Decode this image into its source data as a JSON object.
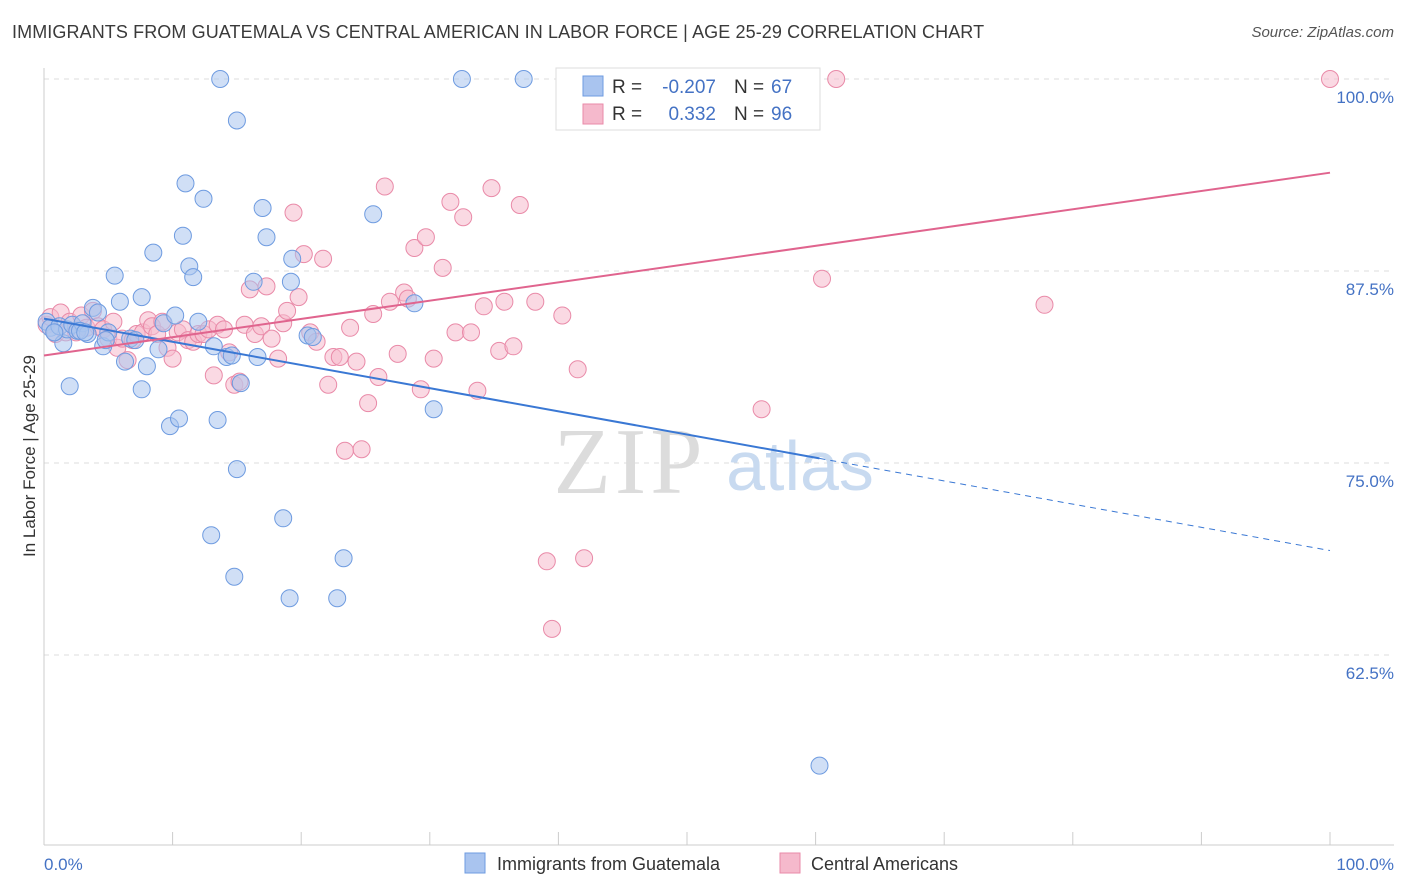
{
  "header": {
    "title": "IMMIGRANTS FROM GUATEMALA VS CENTRAL AMERICAN IN LABOR FORCE | AGE 25-29 CORRELATION CHART",
    "source": "Source: ZipAtlas.com"
  },
  "watermark": {
    "zip": "ZIP",
    "atlas": "atlas"
  },
  "colors": {
    "blue_fill": "#a9c4ef",
    "blue_stroke": "#6e9be0",
    "blue_line": "#3a78d4",
    "pink_fill": "#f5b9cc",
    "pink_stroke": "#e98aa8",
    "pink_line": "#e0648e",
    "grid": "#dddddd",
    "axis_text": "#4472c4"
  },
  "legend_box": {
    "rows": [
      {
        "r_label": "R =",
        "r_value": "-0.207",
        "n_label": "N =",
        "n_value": "67"
      },
      {
        "r_label": "R =",
        "r_value": "0.332",
        "n_label": "N =",
        "n_value": "96"
      }
    ]
  },
  "chart_data": {
    "type": "scatter",
    "title": "IMMIGRANTS FROM GUATEMALA VS CENTRAL AMERICAN IN LABOR FORCE | AGE 25-29 CORRELATION CHART",
    "xlabel": "",
    "ylabel": "In Labor Force | Age 25-29",
    "xlim": [
      0,
      100
    ],
    "ylim": [
      50,
      101.5
    ],
    "x_tick_labels": [
      "0.0%",
      "100.0%"
    ],
    "y_ticks": [
      {
        "value": 62.5,
        "label": "62.5%"
      },
      {
        "value": 75.0,
        "label": "75.0%"
      },
      {
        "value": 87.5,
        "label": "87.5%"
      },
      {
        "value": 100.0,
        "label": "100.0%"
      }
    ],
    "grid": "horizontal dashed",
    "legend_position": "bottom-center",
    "series": [
      {
        "name": "Immigrants from Guatemala",
        "color": "#a9c4ef",
        "points": [
          [
            0.2,
            84.2
          ],
          [
            0.5,
            83.8
          ],
          [
            0.8,
            83.5
          ],
          [
            1.2,
            83.9
          ],
          [
            1.5,
            82.8
          ],
          [
            1.8,
            83.7
          ],
          [
            2.2,
            84.0
          ],
          [
            2.6,
            83.6
          ],
          [
            3.0,
            84.1
          ],
          [
            3.4,
            83.4
          ],
          [
            3.8,
            85.1
          ],
          [
            4.2,
            84.8
          ],
          [
            4.6,
            82.6
          ],
          [
            5.0,
            83.5
          ],
          [
            5.5,
            87.2
          ],
          [
            5.9,
            85.5
          ],
          [
            6.3,
            81.6
          ],
          [
            6.7,
            83.1
          ],
          [
            7.1,
            83.0
          ],
          [
            7.6,
            85.8
          ],
          [
            8.0,
            81.3
          ],
          [
            8.5,
            88.7
          ],
          [
            8.9,
            82.4
          ],
          [
            9.3,
            84.1
          ],
          [
            9.8,
            77.4
          ],
          [
            10.2,
            84.6
          ],
          [
            10.5,
            77.9
          ],
          [
            10.8,
            89.8
          ],
          [
            11.0,
            93.2
          ],
          [
            11.3,
            87.8
          ],
          [
            11.6,
            87.1
          ],
          [
            12.0,
            84.2
          ],
          [
            12.4,
            92.2
          ],
          [
            13.0,
            70.3
          ],
          [
            13.2,
            82.6
          ],
          [
            13.5,
            77.8
          ],
          [
            13.7,
            100.0
          ],
          [
            14.2,
            81.9
          ],
          [
            14.6,
            82.0
          ],
          [
            14.8,
            67.6
          ],
          [
            15.0,
            97.3
          ],
          [
            15.0,
            74.6
          ],
          [
            15.3,
            80.2
          ],
          [
            16.3,
            86.8
          ],
          [
            16.6,
            81.9
          ],
          [
            17.0,
            91.6
          ],
          [
            17.3,
            89.7
          ],
          [
            18.6,
            71.4
          ],
          [
            19.1,
            66.2
          ],
          [
            19.3,
            88.3
          ],
          [
            19.2,
            86.8
          ],
          [
            20.5,
            83.3
          ],
          [
            20.9,
            83.2
          ],
          [
            22.8,
            66.2
          ],
          [
            23.3,
            68.8
          ],
          [
            25.6,
            91.2
          ],
          [
            28.8,
            85.4
          ],
          [
            30.3,
            78.5
          ],
          [
            32.5,
            100.0
          ],
          [
            37.3,
            100.0
          ],
          [
            60.3,
            55.3
          ],
          [
            2.0,
            80.0
          ],
          [
            7.6,
            79.8
          ],
          [
            0.8,
            83.5
          ],
          [
            2.8,
            83.6
          ],
          [
            3.2,
            83.5
          ],
          [
            4.8,
            83.0
          ]
        ]
      },
      {
        "name": "Central Americans",
        "color": "#f5b9cc",
        "points": [
          [
            0.2,
            84.0
          ],
          [
            0.5,
            84.5
          ],
          [
            0.9,
            83.4
          ],
          [
            1.3,
            84.8
          ],
          [
            1.7,
            83.5
          ],
          [
            2.0,
            84.2
          ],
          [
            2.5,
            83.5
          ],
          [
            2.9,
            84.6
          ],
          [
            3.3,
            83.8
          ],
          [
            3.8,
            84.9
          ],
          [
            4.2,
            83.9
          ],
          [
            4.6,
            83.7
          ],
          [
            5.0,
            83.1
          ],
          [
            5.4,
            84.2
          ],
          [
            5.7,
            82.5
          ],
          [
            6.1,
            83.1
          ],
          [
            6.5,
            81.7
          ],
          [
            6.9,
            83.0
          ],
          [
            7.2,
            83.4
          ],
          [
            7.7,
            83.5
          ],
          [
            8.1,
            84.3
          ],
          [
            8.4,
            83.9
          ],
          [
            8.8,
            83.4
          ],
          [
            9.2,
            84.2
          ],
          [
            9.6,
            82.5
          ],
          [
            10.0,
            81.8
          ],
          [
            10.4,
            83.5
          ],
          [
            10.8,
            83.7
          ],
          [
            11.2,
            83.0
          ],
          [
            11.6,
            82.9
          ],
          [
            12.0,
            83.4
          ],
          [
            12.4,
            83.4
          ],
          [
            12.8,
            83.7
          ],
          [
            13.2,
            80.7
          ],
          [
            13.5,
            84.0
          ],
          [
            14.0,
            83.7
          ],
          [
            14.4,
            82.2
          ],
          [
            14.8,
            80.1
          ],
          [
            15.2,
            80.3
          ],
          [
            15.6,
            84.0
          ],
          [
            16.0,
            86.3
          ],
          [
            16.4,
            83.4
          ],
          [
            16.9,
            83.9
          ],
          [
            17.3,
            86.5
          ],
          [
            17.7,
            83.1
          ],
          [
            18.2,
            81.8
          ],
          [
            18.6,
            84.1
          ],
          [
            18.9,
            84.9
          ],
          [
            19.4,
            91.3
          ],
          [
            19.8,
            85.8
          ],
          [
            20.2,
            88.6
          ],
          [
            20.7,
            83.5
          ],
          [
            21.2,
            82.9
          ],
          [
            21.7,
            88.3
          ],
          [
            22.1,
            80.1
          ],
          [
            22.5,
            81.9
          ],
          [
            23.0,
            81.9
          ],
          [
            23.4,
            75.8
          ],
          [
            23.8,
            83.8
          ],
          [
            24.3,
            81.6
          ],
          [
            24.7,
            75.9
          ],
          [
            25.2,
            78.9
          ],
          [
            25.6,
            84.7
          ],
          [
            26.0,
            80.6
          ],
          [
            26.5,
            93.0
          ],
          [
            26.9,
            85.5
          ],
          [
            27.5,
            82.1
          ],
          [
            28.0,
            86.1
          ],
          [
            28.3,
            85.7
          ],
          [
            28.8,
            89.0
          ],
          [
            29.3,
            79.8
          ],
          [
            29.7,
            89.7
          ],
          [
            30.3,
            81.8
          ],
          [
            31.0,
            87.7
          ],
          [
            31.6,
            92.0
          ],
          [
            32.0,
            83.5
          ],
          [
            32.6,
            91.0
          ],
          [
            33.2,
            83.5
          ],
          [
            33.7,
            79.7
          ],
          [
            34.2,
            85.2
          ],
          [
            34.8,
            92.9
          ],
          [
            35.4,
            82.3
          ],
          [
            35.8,
            85.5
          ],
          [
            36.5,
            82.6
          ],
          [
            37.0,
            91.8
          ],
          [
            38.2,
            85.5
          ],
          [
            39.1,
            68.6
          ],
          [
            39.5,
            64.2
          ],
          [
            40.3,
            84.6
          ],
          [
            41.5,
            81.1
          ],
          [
            42.0,
            68.8
          ],
          [
            55.8,
            78.5
          ],
          [
            60.5,
            87.0
          ],
          [
            61.6,
            100.0
          ],
          [
            77.8,
            85.3
          ],
          [
            100.0,
            100.0
          ]
        ]
      }
    ],
    "trendlines": [
      {
        "series": "Immigrants from Guatemala",
        "x": [
          0,
          60.3
        ],
        "y": [
          84.4,
          75.3
        ],
        "dashed_extension_to": [
          100,
          69.3
        ]
      },
      {
        "series": "Central Americans",
        "x": [
          0,
          100
        ],
        "y": [
          82.0,
          93.9
        ]
      }
    ]
  }
}
